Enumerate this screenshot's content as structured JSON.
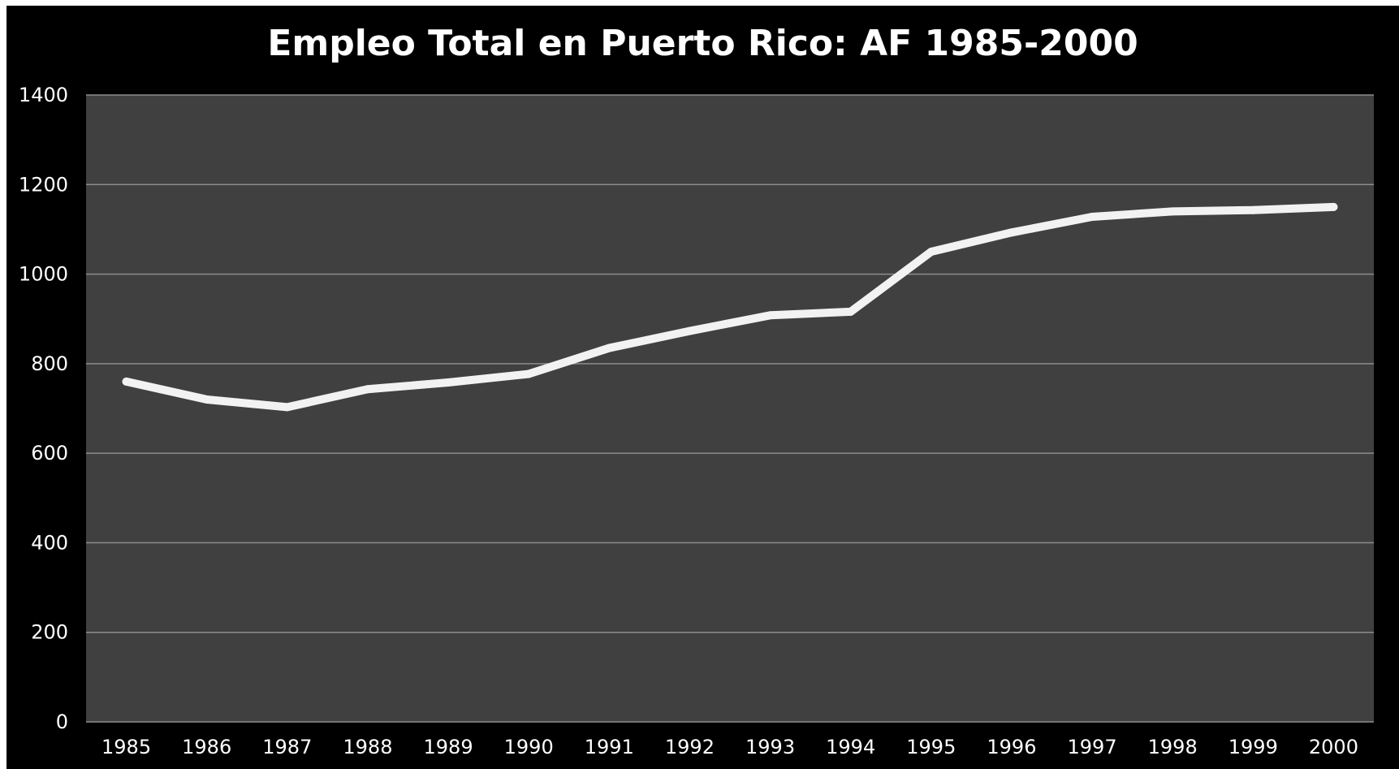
{
  "chart_data": {
    "type": "line",
    "title": "Empleo Total en Puerto Rico: AF 1985-2000",
    "xlabel": "",
    "ylabel": "",
    "categories": [
      "1985",
      "1986",
      "1987",
      "1988",
      "1989",
      "1990",
      "1991",
      "1992",
      "1993",
      "1994",
      "1995",
      "1996",
      "1997",
      "1998",
      "1999",
      "2000"
    ],
    "series": [
      {
        "values": [
          760,
          720,
          703,
          743,
          758,
          777,
          835,
          873,
          908,
          916,
          1050,
          1093,
          1128,
          1140,
          1143,
          1150
        ]
      }
    ],
    "ylim": [
      0,
      1400
    ],
    "yticks": [
      0,
      200,
      400,
      600,
      800,
      1000,
      1200,
      1400
    ],
    "grid": true,
    "legend": "none",
    "colors": {
      "background": "#000000",
      "plot_area": "#404040",
      "gridline": "#8c8c8c",
      "line": "#f2f2f2",
      "text": "#ffffff"
    }
  }
}
